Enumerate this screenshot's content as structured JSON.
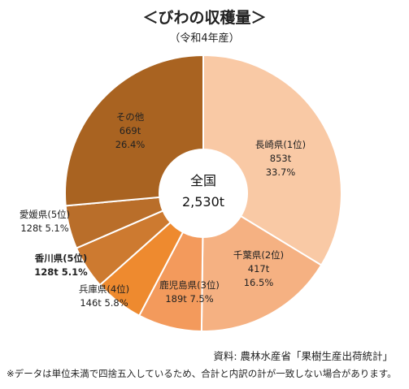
{
  "header": {
    "title": "＜びわの収穫量＞",
    "subtitle": "（令和4年産）"
  },
  "chart_data": {
    "type": "pie",
    "center_label": "全国",
    "center_value": "2,530t",
    "total": 2530,
    "unit": "t",
    "slices": [
      {
        "name": "長崎県(1位)",
        "value": 853,
        "value_label": "853t",
        "percent": 33.7,
        "percent_label": "33.7%",
        "color": "#F9C9A5"
      },
      {
        "name": "千葉県(2位)",
        "value": 417,
        "value_label": "417t",
        "percent": 16.5,
        "percent_label": "16.5%",
        "color": "#F5B182"
      },
      {
        "name": "鹿児島県(3位)",
        "value": 189,
        "value_label": "189t",
        "percent": 7.5,
        "percent_label": "7.5%",
        "color": "#F39A5C"
      },
      {
        "name": "兵庫県(4位)",
        "value": 146,
        "value_label": "146t",
        "percent": 5.8,
        "percent_label": "5.8%",
        "color": "#EE8A2F"
      },
      {
        "name": "香川県(5位)",
        "value": 128,
        "value_label": "128t",
        "percent": 5.1,
        "percent_label": "5.1%",
        "color": "#CD7A30"
      },
      {
        "name": "愛媛県(5位)",
        "value": 128,
        "value_label": "128t",
        "percent": 5.1,
        "percent_label": "5.1%",
        "color": "#B96E2A"
      },
      {
        "name": "その他",
        "value": 669,
        "value_label": "669t",
        "percent": 26.4,
        "percent_label": "26.4%",
        "color": "#A96321"
      }
    ]
  },
  "footer": {
    "source": "資料: 農林水産省「果樹生産出荷統計」",
    "note": "※データは単位未満で四捨五入しているため、合計と内訳の計が一致しない場合があります。"
  }
}
